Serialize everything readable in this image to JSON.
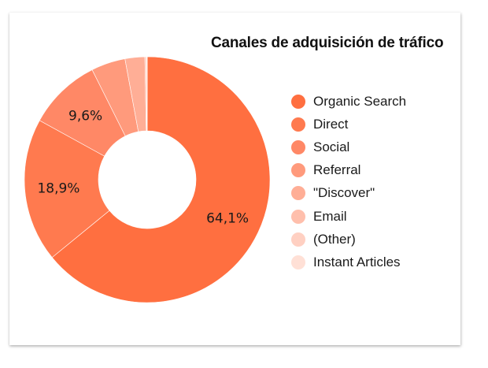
{
  "chart_data": {
    "type": "pie",
    "variant": "donut",
    "title": "Canales de adquisición de tráfico",
    "categories": [
      "Organic Search",
      "Direct",
      "Social",
      "Referral",
      "\"Discover\"",
      "Email",
      "(Other)",
      "Instant Articles"
    ],
    "values": [
      64.1,
      18.9,
      9.6,
      4.5,
      2.6,
      0.2,
      0.05,
      0.05
    ],
    "colors": [
      "#ff6f40",
      "#ff7a4f",
      "#ff8866",
      "#ff9a7c",
      "#ffae96",
      "#ffbfac",
      "#ffd0c2",
      "#ffe0d6"
    ],
    "data_labels": [
      "64,1%",
      "18,9%",
      "9,6%",
      "",
      "",
      "",
      "",
      ""
    ],
    "legend_position": "right"
  },
  "title": "Canales de adquisición de tráfico",
  "legend": [
    {
      "label": "Organic Search",
      "color": "#ff6f40"
    },
    {
      "label": "Direct",
      "color": "#ff7a4f"
    },
    {
      "label": "Social",
      "color": "#ff8866"
    },
    {
      "label": "Referral",
      "color": "#ff9a7c"
    },
    {
      "label": "\"Discover\"",
      "color": "#ffae96"
    },
    {
      "label": "Email",
      "color": "#ffbfac"
    },
    {
      "label": "(Other)",
      "color": "#ffd0c2"
    },
    {
      "label": "Instant Articles",
      "color": "#ffe0d6"
    }
  ]
}
